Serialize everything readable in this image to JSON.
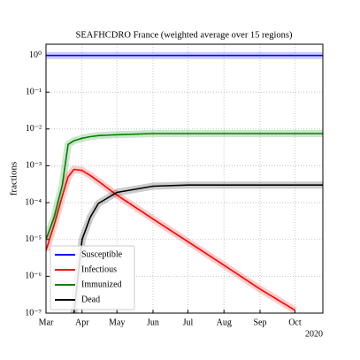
{
  "chart_data": {
    "type": "line",
    "title": "SEAFHCDRO France (weighted average over 15 regions)",
    "y_label": "fractions",
    "x_offset_label": "2020",
    "x": [
      "2020-03-01",
      "2020-03-08",
      "2020-03-15",
      "2020-03-20",
      "2020-03-25",
      "2020-04-01",
      "2020-04-08",
      "2020-04-15",
      "2020-05-01",
      "2020-06-01",
      "2020-07-01",
      "2020-08-01",
      "2020-09-01",
      "2020-10-01",
      "2020-10-25"
    ],
    "xlim": [
      "2020-03-01",
      "2020-10-25"
    ],
    "xticks": [
      {
        "value": "2020-03-01",
        "label": "Mar"
      },
      {
        "value": "2020-04-01",
        "label": "Apr"
      },
      {
        "value": "2020-05-01",
        "label": "May"
      },
      {
        "value": "2020-06-01",
        "label": "Jun"
      },
      {
        "value": "2020-07-01",
        "label": "Jul"
      },
      {
        "value": "2020-08-01",
        "label": "Aug"
      },
      {
        "value": "2020-09-01",
        "label": "Sep"
      },
      {
        "value": "2020-10-01",
        "label": "Oct"
      }
    ],
    "ylim": [
      1e-07,
      2
    ],
    "yscale": "log",
    "yticks": [
      {
        "value": 1,
        "label": "10⁰"
      },
      {
        "value": 0.1,
        "label": "10⁻¹"
      },
      {
        "value": 0.01,
        "label": "10⁻²"
      },
      {
        "value": 0.001,
        "label": "10⁻³"
      },
      {
        "value": 0.0001,
        "label": "10⁻⁴"
      },
      {
        "value": 1e-05,
        "label": "10⁻⁵"
      },
      {
        "value": 1e-06,
        "label": "10⁻⁶"
      },
      {
        "value": 1e-07,
        "label": "10⁻⁷"
      }
    ],
    "grid": true,
    "legend": "lower left",
    "series": [
      {
        "name": "Susceptible",
        "color": "#0000ff",
        "values": [
          0.99,
          0.99,
          0.99,
          0.99,
          0.99,
          0.99,
          0.99,
          0.99,
          0.99,
          0.99,
          0.99,
          0.99,
          0.99,
          0.99,
          0.99
        ]
      },
      {
        "name": "Infectious",
        "color": "#ff0000",
        "values": [
          5e-06,
          2.5e-05,
          0.00015,
          0.0005,
          0.0008,
          0.00075,
          0.00055,
          0.00038,
          0.00016,
          3.6e-05,
          8.7e-06,
          2e-06,
          4.5e-07,
          1.2e-07,
          null
        ]
      },
      {
        "name": "Immunized",
        "color": "#008000",
        "values": [
          1e-05,
          4e-05,
          0.0003,
          0.0038,
          0.0048,
          0.0056,
          0.0062,
          0.0066,
          0.007,
          0.0075,
          0.0075,
          0.0075,
          0.0075,
          0.0075,
          0.0075
        ]
      },
      {
        "name": "Dead",
        "color": "#000000",
        "values": [
          null,
          null,
          null,
          null,
          1e-07,
          1e-05,
          4e-05,
          9.5e-05,
          0.00019,
          0.00028,
          0.0003,
          0.0003,
          0.0003,
          0.0003,
          0.0003
        ]
      }
    ]
  }
}
